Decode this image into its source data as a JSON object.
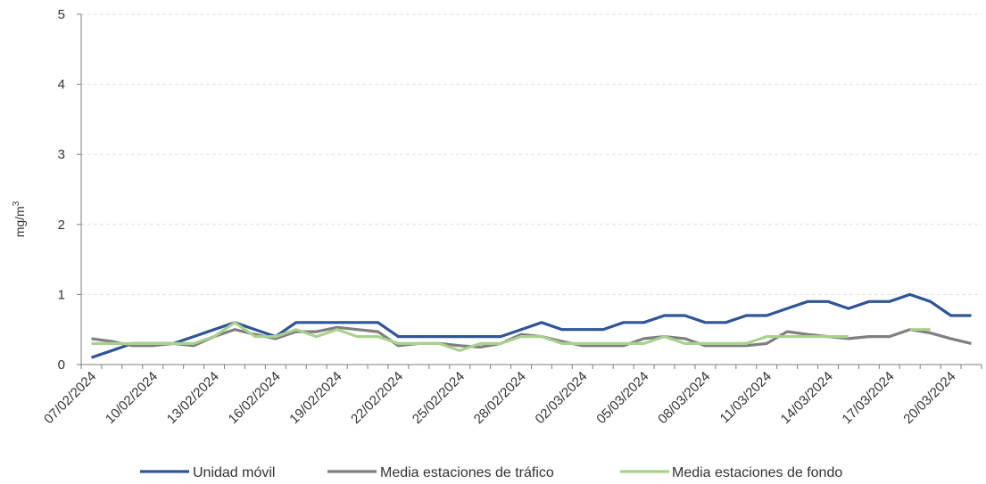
{
  "chart_data": {
    "type": "line",
    "title": "",
    "xlabel": "",
    "ylabel": "mg/m",
    "ylabel_superscript": "3",
    "ylim": [
      0,
      5
    ],
    "yticks": [
      "0",
      "1",
      "2",
      "3",
      "4",
      "5"
    ],
    "grid": true,
    "legend_position": "bottom",
    "x": [
      "07/02/2024",
      "08/02/2024",
      "09/02/2024",
      "10/02/2024",
      "11/02/2024",
      "12/02/2024",
      "13/02/2024",
      "14/02/2024",
      "15/02/2024",
      "16/02/2024",
      "17/02/2024",
      "18/02/2024",
      "19/02/2024",
      "20/02/2024",
      "21/02/2024",
      "22/02/2024",
      "23/02/2024",
      "24/02/2024",
      "25/02/2024",
      "26/02/2024",
      "27/02/2024",
      "28/02/2024",
      "29/02/2024",
      "01/03/2024",
      "02/03/2024",
      "03/03/2024",
      "04/03/2024",
      "05/03/2024",
      "06/03/2024",
      "07/03/2024",
      "08/03/2024",
      "09/03/2024",
      "10/03/2024",
      "11/03/2024",
      "12/03/2024",
      "13/03/2024",
      "14/03/2024",
      "15/03/2024",
      "16/03/2024",
      "17/03/2024",
      "18/03/2024",
      "19/03/2024",
      "20/03/2024",
      "21/03/2024"
    ],
    "xtick_labels": [
      "07/02/2024",
      "10/02/2024",
      "13/02/2024",
      "16/02/2024",
      "19/02/2024",
      "22/02/2024",
      "25/02/2024",
      "28/02/2024",
      "02/03/2024",
      "05/03/2024",
      "08/03/2024",
      "11/03/2024",
      "14/03/2024",
      "17/03/2024",
      "20/03/2024"
    ],
    "series": [
      {
        "name": "Unidad móvil",
        "color": "#2f5597",
        "values": [
          0.1,
          0.2,
          0.3,
          0.3,
          0.3,
          0.4,
          0.5,
          0.6,
          0.5,
          0.4,
          0.6,
          0.6,
          0.6,
          0.6,
          0.6,
          0.4,
          0.4,
          0.4,
          0.4,
          0.4,
          0.4,
          0.5,
          0.6,
          0.5,
          0.5,
          0.5,
          0.6,
          0.6,
          0.7,
          0.7,
          0.6,
          0.6,
          0.7,
          0.7,
          0.8,
          0.9,
          0.9,
          0.8,
          0.9,
          0.9,
          1.0,
          0.9,
          0.7,
          0.7
        ]
      },
      {
        "name": "Media estaciones de tráfico",
        "color": "#7f7f7f",
        "values": [
          0.37,
          0.33,
          0.27,
          0.27,
          0.3,
          0.27,
          0.4,
          0.5,
          0.43,
          0.37,
          0.47,
          0.47,
          0.53,
          0.5,
          0.47,
          0.27,
          0.3,
          0.3,
          0.27,
          0.25,
          0.3,
          0.43,
          0.4,
          0.33,
          0.27,
          0.27,
          0.27,
          0.37,
          0.4,
          0.37,
          0.27,
          0.27,
          0.27,
          0.3,
          0.47,
          0.43,
          0.4,
          0.37,
          0.4,
          0.4,
          0.5,
          0.45,
          0.37,
          0.3
        ]
      },
      {
        "name": "Media estaciones de fondo",
        "color": "#a9d18e",
        "values": [
          0.3,
          0.3,
          0.3,
          0.3,
          0.3,
          0.3,
          0.4,
          0.6,
          0.4,
          0.4,
          0.5,
          0.4,
          0.5,
          0.4,
          0.4,
          0.3,
          0.3,
          0.3,
          0.2,
          0.3,
          0.3,
          0.4,
          0.4,
          0.3,
          0.3,
          0.3,
          0.3,
          0.3,
          0.4,
          0.3,
          0.3,
          0.3,
          0.3,
          0.4,
          0.4,
          0.4,
          0.4,
          0.4,
          null,
          null,
          0.5,
          0.5,
          null,
          null
        ]
      }
    ]
  }
}
